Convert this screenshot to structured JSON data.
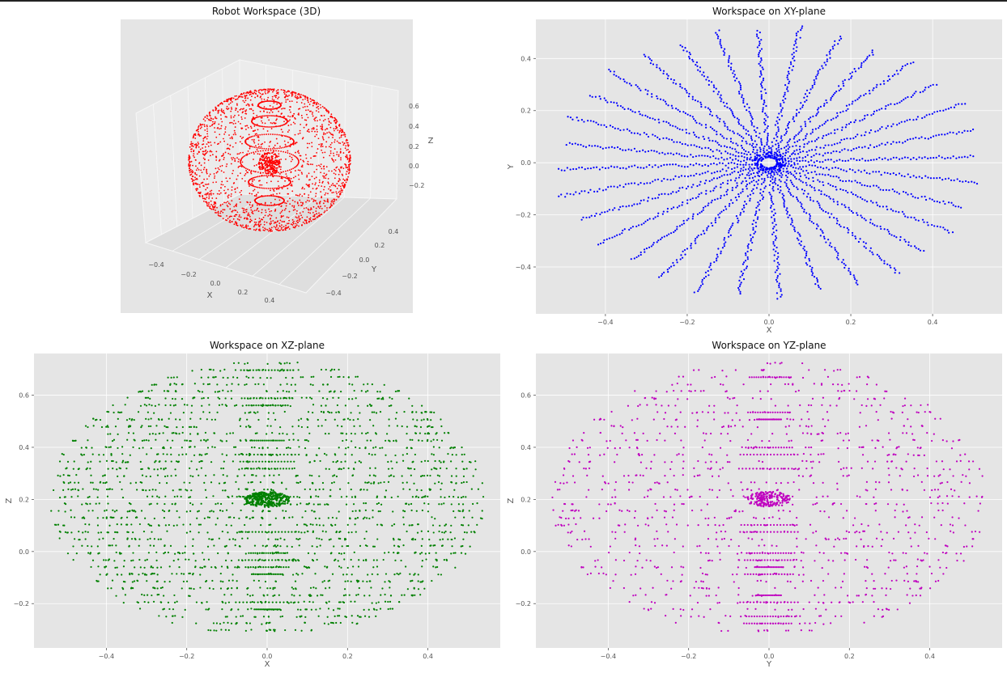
{
  "chart_data": [
    {
      "type": "scatter",
      "title": "Robot Workspace (3D)",
      "xlabel": "X",
      "ylabel": "Y",
      "zlabel": "Z",
      "xticks": [
        "−0.4",
        "−0.2",
        "0.0",
        "0.2",
        "0.4"
      ],
      "yticks": [
        "−0.4",
        "−0.2",
        "0.0",
        "0.2",
        "0.4"
      ],
      "zticks": [
        "−0.2",
        "0.0",
        "0.2",
        "0.4",
        "0.6"
      ],
      "xlim": [
        -0.55,
        0.55
      ],
      "ylim": [
        -0.55,
        0.55
      ],
      "zlim": [
        -0.35,
        0.75
      ],
      "color": "#ff0000",
      "grid": true,
      "shape": "ellipsoid of points centered at (0, 0, 0.2)"
    },
    {
      "type": "scatter",
      "title": "Workspace on XY-plane",
      "xlabel": "X",
      "ylabel": "Y",
      "xticks": [
        "−0.4",
        "−0.2",
        "0.0",
        "0.2",
        "0.4"
      ],
      "yticks": [
        "−0.4",
        "−0.2",
        "0.0",
        "0.2",
        "0.4"
      ],
      "xlim": [
        -0.57,
        0.57
      ],
      "ylim": [
        -0.58,
        0.55
      ],
      "color": "#0000ff",
      "grid": true,
      "shape": "radial spokes from origin, radius up to ~0.53"
    },
    {
      "type": "scatter",
      "title": "Workspace on XZ-plane",
      "xlabel": "X",
      "ylabel": "Z",
      "xticks": [
        "−0.4",
        "−0.2",
        "0.0",
        "0.2",
        "0.4"
      ],
      "yticks": [
        "−0.2",
        "0.0",
        "0.2",
        "0.4",
        "0.6"
      ],
      "xlim": [
        -0.58,
        0.58
      ],
      "ylim": [
        -0.37,
        0.76
      ],
      "color": "#008000",
      "grid": true,
      "shape": "horizontal point rows filling an ellipse centered at (0, 0.2)"
    },
    {
      "type": "scatter",
      "title": "Workspace on YZ-plane",
      "xlabel": "Y",
      "ylabel": "Z",
      "xticks": [
        "−0.4",
        "−0.2",
        "0.0",
        "0.2",
        "0.4"
      ],
      "yticks": [
        "−0.2",
        "0.0",
        "0.2",
        "0.4",
        "0.6"
      ],
      "xlim": [
        -0.58,
        0.58
      ],
      "ylim": [
        -0.37,
        0.76
      ],
      "color": "#bf00bf",
      "grid": true,
      "shape": "sparser point rows filling an ellipse centered at (0, 0.2)"
    }
  ]
}
